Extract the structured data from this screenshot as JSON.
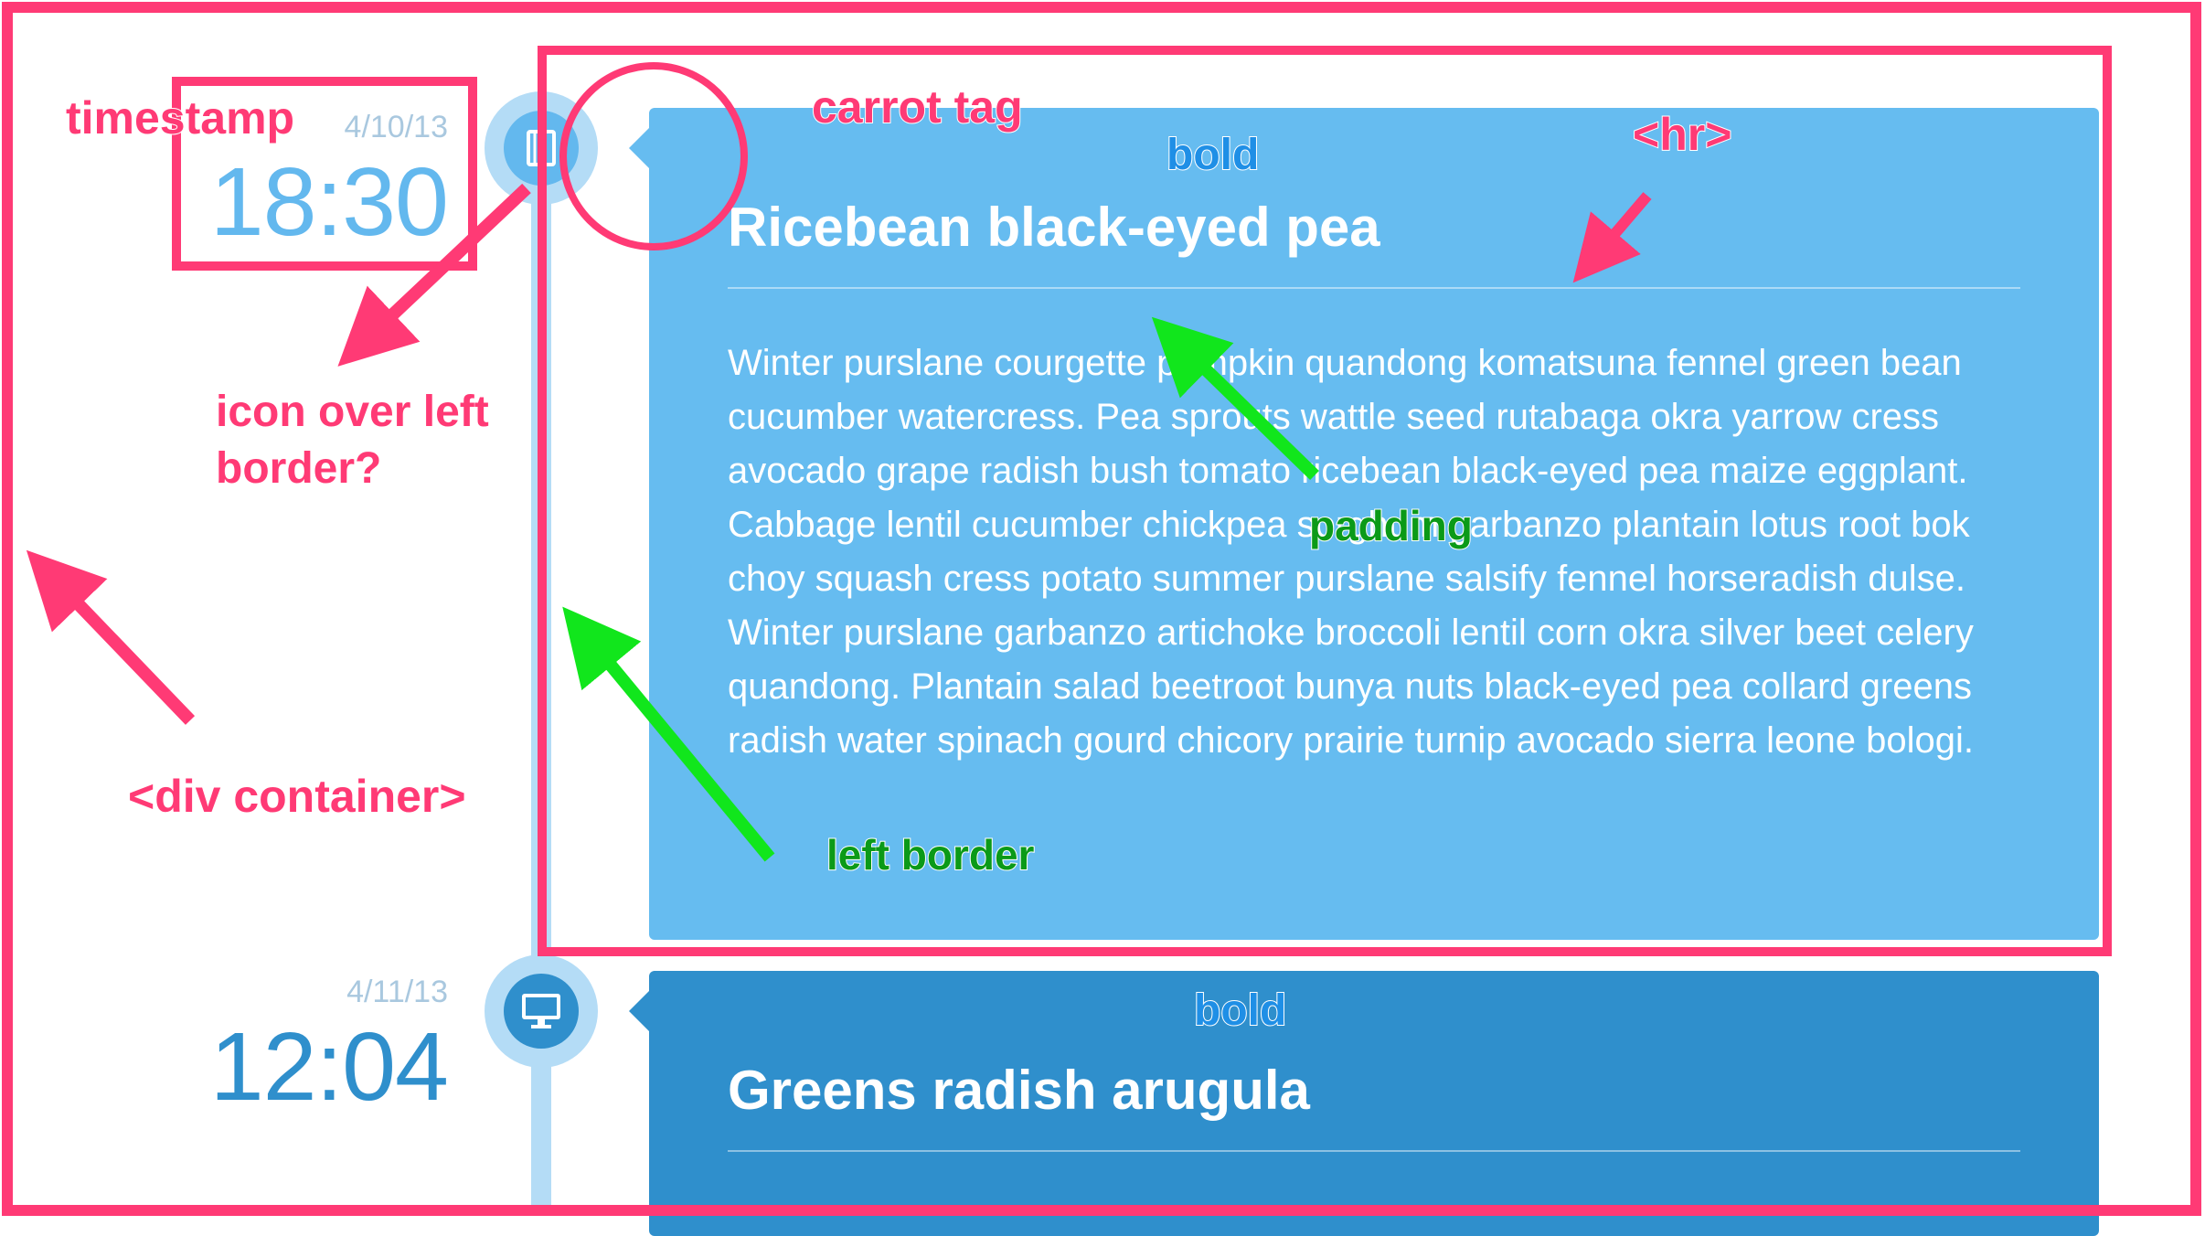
{
  "timeline": [
    {
      "date": "4/10/13",
      "time": "18:30",
      "icon": "book-icon",
      "title": "Ricebean black-eyed pea",
      "body": "Winter purslane courgette pumpkin quandong komatsuna fennel green bean cucumber watercress. Pea sprouts wattle seed rutabaga okra yarrow cress avocado grape radish bush tomato ricebean black-eyed pea maize eggplant. Cabbage lentil cucumber chickpea sorghum garbanzo plantain lotus root bok choy squash cress potato summer purslane salsify fennel horseradish dulse. Winter purslane garbanzo artichoke broccoli lentil corn okra silver beet celery quandong. Plantain salad beetroot bunya nuts black-eyed pea collard greens radish water spinach gourd chicory prairie turnip avocado sierra leone bologi."
    },
    {
      "date": "4/11/13",
      "time": "12:04",
      "icon": "monitor-icon",
      "title": "Greens radish arugula",
      "body": ""
    }
  ],
  "annotations": {
    "timestamp": "timestamp",
    "carrot_tag": "carrot tag",
    "bold_1": "bold",
    "hr": "<hr>",
    "icon_over_left_border_line1": "icon over left",
    "icon_over_left_border_line2": "border?",
    "padding": "padding",
    "div_container": "<div container>",
    "left_border": "left border",
    "bold_2": "bold"
  },
  "colors": {
    "annotation_pink": "#ff3a75",
    "annotation_green": "#11e61c",
    "card_light": "#66bcf0",
    "card_dark": "#2f8fcc",
    "line": "#b4dcf6"
  }
}
